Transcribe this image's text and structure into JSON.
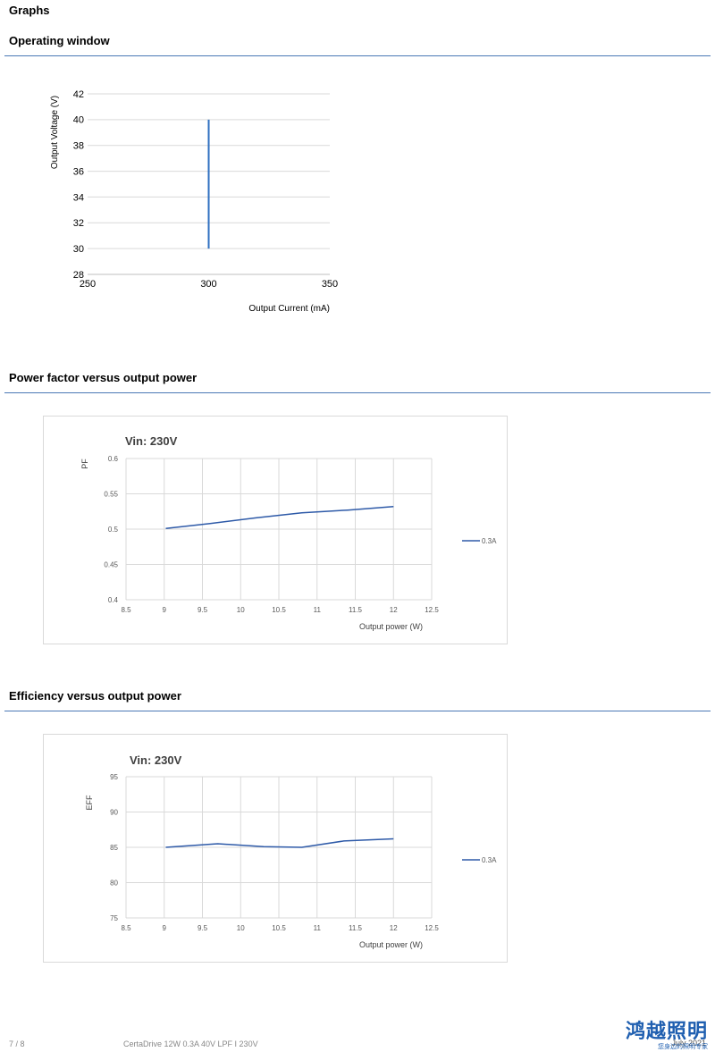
{
  "page": {
    "title": "Graphs",
    "footer_page": "7 / 8",
    "footer_product": "CertaDrive 12W 0.3A 40V LPF I 230V",
    "footer_date": "July 2021",
    "logo_text": "鸿越照明",
    "logo_subtext": "您身边的照明专家"
  },
  "sections": {
    "operating_window": "Operating window",
    "power_factor": "Power factor versus output power",
    "efficiency": "Efficiency versus output power"
  },
  "chart_data": [
    {
      "type": "line",
      "title": "",
      "xlabel": "Output Current (mA)",
      "ylabel": "Output Voltage (V)",
      "xlim": [
        250,
        350
      ],
      "ylim": [
        28,
        42
      ],
      "xticks": [
        250,
        300,
        350
      ],
      "yticks": [
        28,
        30,
        32,
        34,
        36,
        38,
        40,
        42
      ],
      "grid": true,
      "legend": "none",
      "series": [
        {
          "x": [
            300,
            300
          ],
          "y": [
            30,
            40
          ],
          "color": "#2e6fc0"
        }
      ]
    },
    {
      "type": "line",
      "title": "Vin: 230V",
      "xlabel": "Output power (W)",
      "ylabel": "PF",
      "xlim": [
        8.5,
        12.5
      ],
      "ylim": [
        0.4,
        0.6
      ],
      "xticks": [
        "8.5",
        "9",
        "9.5",
        "10",
        "10.5",
        "11",
        "11.5",
        "12",
        "12.5"
      ],
      "yticks": [
        "0.4",
        "0.45",
        "0.5",
        "0.55",
        "0.6"
      ],
      "grid": true,
      "legend": "right",
      "series": [
        {
          "name": "0.3A",
          "color": "#2e5aa8",
          "x": [
            9.02,
            9.6,
            10.2,
            10.8,
            11.4,
            12.0
          ],
          "y": [
            0.501,
            0.508,
            0.516,
            0.523,
            0.527,
            0.532
          ]
        }
      ]
    },
    {
      "type": "line",
      "title": "Vin: 230V",
      "xlabel": "Output power (W)",
      "ylabel": "EFF",
      "xlim": [
        8.5,
        12.5
      ],
      "ylim": [
        75,
        95
      ],
      "xticks": [
        "8.5",
        "9",
        "9.5",
        "10",
        "10.5",
        "11",
        "11.5",
        "12",
        "12.5"
      ],
      "yticks": [
        "75",
        "80",
        "85",
        "90",
        "95"
      ],
      "grid": true,
      "legend": "right",
      "series": [
        {
          "name": "0.3A",
          "color": "#2e5aa8",
          "x": [
            9.02,
            9.7,
            10.3,
            10.8,
            11.35,
            12.0
          ],
          "y": [
            85.0,
            85.5,
            85.1,
            85.0,
            85.9,
            86.2
          ]
        }
      ]
    }
  ]
}
